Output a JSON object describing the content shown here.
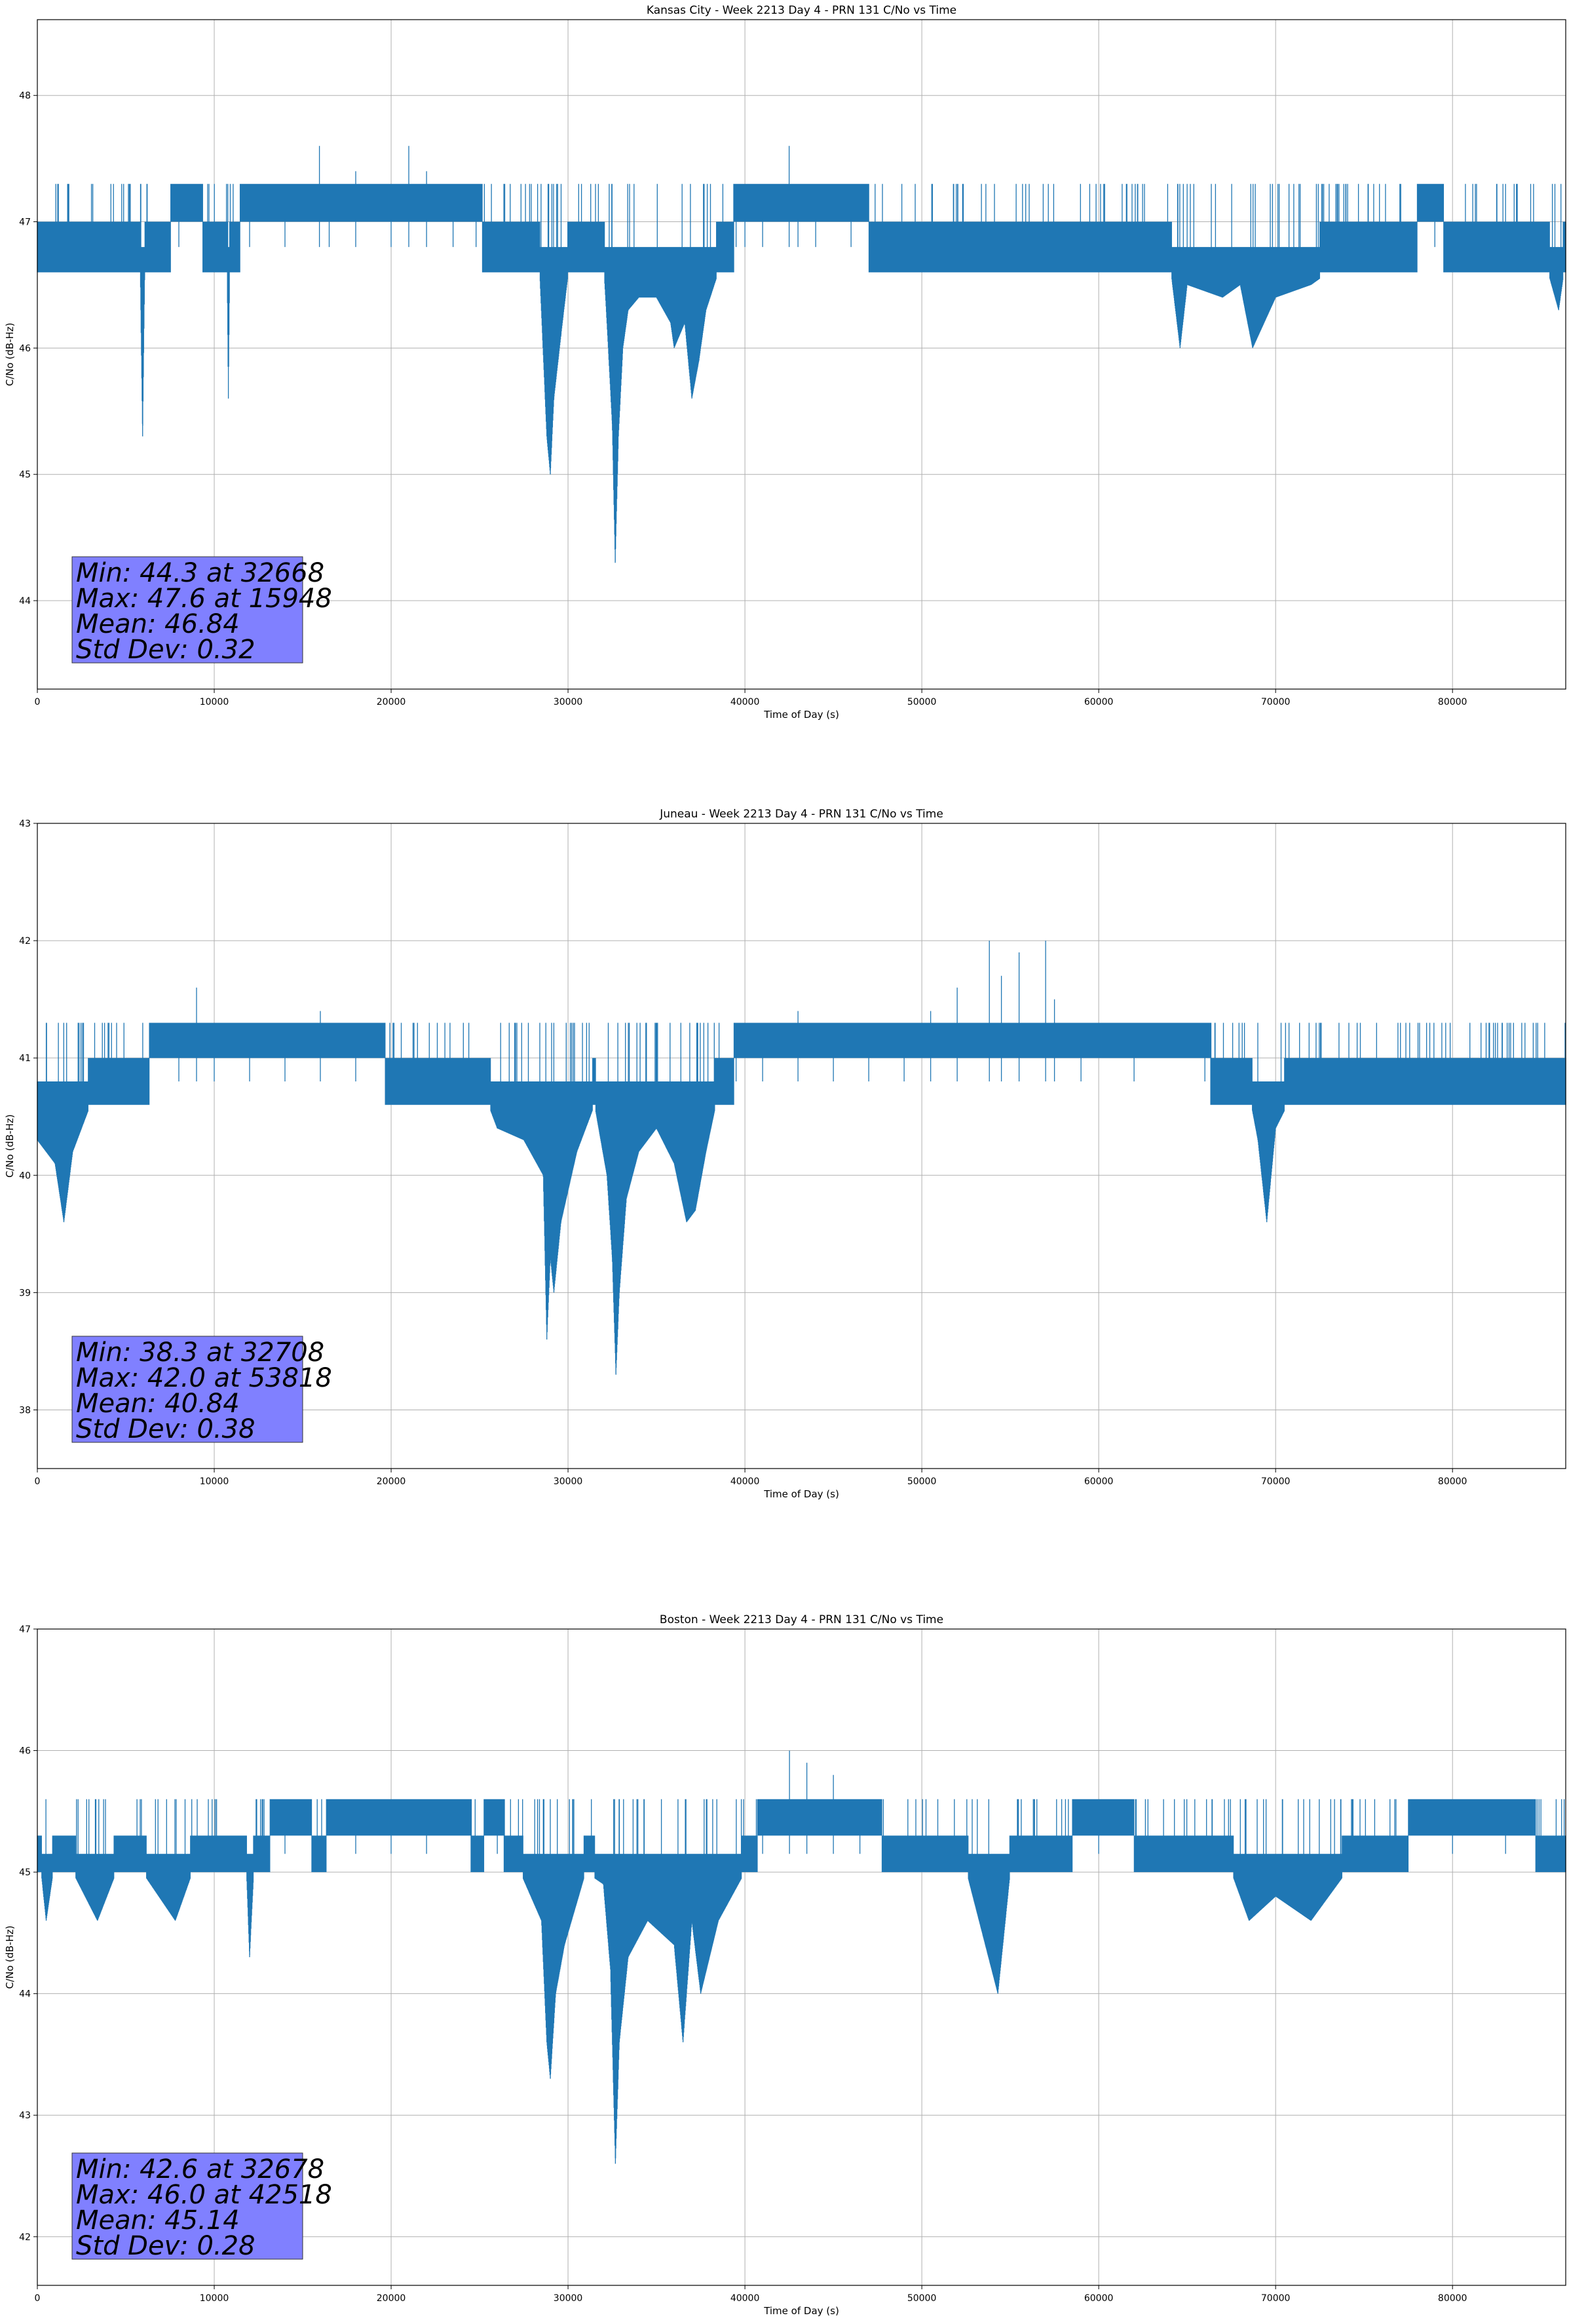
{
  "chart_data": [
    {
      "type": "line",
      "title": "Kansas City - Week 2213 Day 4 - PRN 131 C/No vs Time",
      "xlabel": "Time of Day (s)",
      "ylabel": "C/No (dB-Hz)",
      "xlim": [
        0,
        86400
      ],
      "ylim": [
        43.3,
        48.6
      ],
      "xticks": [
        0,
        10000,
        20000,
        30000,
        40000,
        50000,
        60000,
        70000,
        80000
      ],
      "yticks": [
        44,
        45,
        46,
        47,
        48
      ],
      "grid": true,
      "series_color": "#1f77b4",
      "base_low": 46.6,
      "base_high": 47.0,
      "upper_level": 47.3,
      "stats_lines": [
        "Min: 44.3 at 32668",
        "Max: 47.6 at 15948",
        "Mean: 46.84",
        "Std Dev: 0.32"
      ],
      "series": [
        {
          "x": [
            0,
            2000,
            4000,
            5800,
            5950,
            6100,
            8000,
            10700,
            10800,
            10900,
            12000,
            14000,
            15948,
            16500,
            18000,
            20000,
            21000,
            22000,
            23500,
            24800,
            25500,
            26500,
            27500,
            28400,
            28800,
            29000,
            29200,
            29600,
            30100,
            31000,
            32000,
            32200,
            32500,
            32668,
            32850,
            33100,
            33400,
            34000,
            35000,
            35800,
            36000,
            36600,
            37000,
            37400,
            37800,
            38500,
            39000,
            39500,
            40000,
            41000,
            42500,
            43000,
            44000,
            46000,
            48000,
            50000,
            52000,
            55000,
            58000,
            60500,
            64000,
            64600,
            65000,
            67000,
            68000,
            68700,
            70000,
            72000,
            73000,
            74000,
            77000,
            79000,
            81000,
            84000,
            85000,
            86000,
            86400
          ],
          "y": [
            47.0,
            47.0,
            46.7,
            46.8,
            45.3,
            46.9,
            47.1,
            47.0,
            45.6,
            47.0,
            47.1,
            47.2,
            47.6,
            47.3,
            47.4,
            47.3,
            47.6,
            47.4,
            47.3,
            47.2,
            46.9,
            46.8,
            46.7,
            46.6,
            45.3,
            45.0,
            45.6,
            46.1,
            46.7,
            46.8,
            46.7,
            46.2,
            45.4,
            44.3,
            45.3,
            46.0,
            46.3,
            46.4,
            46.4,
            46.2,
            46.0,
            46.2,
            45.6,
            45.9,
            46.3,
            46.6,
            46.9,
            47.1,
            47.3,
            47.3,
            47.6,
            47.2,
            47.3,
            47.1,
            47.0,
            46.8,
            46.7,
            46.6,
            46.7,
            46.8,
            46.7,
            46.0,
            46.5,
            46.4,
            46.5,
            46.0,
            46.4,
            46.5,
            46.6,
            46.8,
            47.0,
            47.1,
            46.9,
            46.7,
            46.8,
            46.3,
            46.7
          ]
        }
      ]
    },
    {
      "type": "line",
      "title": "Juneau - Week 2213 Day 4 - PRN 131 C/No vs Time",
      "xlabel": "Time of Day (s)",
      "ylabel": "C/No (dB-Hz)",
      "xlim": [
        0,
        86400
      ],
      "ylim": [
        37.5,
        43.0
      ],
      "xticks": [
        0,
        10000,
        20000,
        30000,
        40000,
        50000,
        60000,
        70000,
        80000
      ],
      "yticks": [
        38,
        39,
        40,
        41,
        42,
        43
      ],
      "grid": true,
      "series_color": "#1f77b4",
      "base_low": 40.6,
      "base_high": 41.0,
      "upper_level": 41.3,
      "stats_lines": [
        "Min: 38.3 at 32708",
        "Max: 42.0 at 53818",
        "Mean: 40.84",
        "Std Dev: 0.38"
      ],
      "series": [
        {
          "x": [
            0,
            1000,
            1500,
            2000,
            3000,
            4500,
            6000,
            8000,
            9000,
            10000,
            12000,
            14000,
            16000,
            18000,
            20000,
            22000,
            24000,
            25000,
            26000,
            27500,
            28600,
            28800,
            29000,
            29200,
            29600,
            30500,
            31500,
            32200,
            32500,
            32708,
            32900,
            33300,
            34000,
            35000,
            36000,
            36700,
            37200,
            37800,
            38500,
            39500,
            41000,
            43000,
            45000,
            47000,
            49000,
            50500,
            52000,
            53818,
            54500,
            55500,
            57000,
            57500,
            59000,
            62000,
            66000,
            68500,
            69000,
            69500,
            70000,
            71000,
            74000,
            77000,
            80000,
            83000,
            86400
          ],
          "y": [
            40.3,
            40.1,
            39.6,
            40.2,
            40.6,
            40.8,
            41.0,
            41.3,
            41.6,
            41.2,
            41.3,
            41.1,
            41.4,
            41.3,
            41.0,
            40.9,
            40.6,
            40.8,
            40.4,
            40.3,
            40.0,
            38.6,
            39.3,
            39.0,
            39.6,
            40.2,
            40.6,
            40.0,
            39.3,
            38.3,
            39.0,
            39.8,
            40.2,
            40.4,
            40.1,
            39.6,
            39.7,
            40.2,
            40.7,
            41.1,
            41.3,
            41.4,
            41.2,
            41.3,
            41.2,
            41.4,
            41.6,
            42.0,
            41.7,
            41.9,
            42.0,
            41.5,
            41.3,
            41.3,
            41.1,
            40.7,
            40.3,
            39.6,
            40.4,
            40.7,
            41.0,
            40.9,
            40.8,
            40.7,
            40.6
          ]
        }
      ]
    },
    {
      "type": "line",
      "title": "Boston - Week 2213 Day 4 - PRN 131 C/No vs Time",
      "xlabel": "Time of Day (s)",
      "ylabel": "C/No (dB-Hz)",
      "xlim": [
        0,
        86400
      ],
      "ylim": [
        41.6,
        47.0
      ],
      "xticks": [
        0,
        10000,
        20000,
        30000,
        40000,
        50000,
        60000,
        70000,
        80000
      ],
      "yticks": [
        42,
        43,
        44,
        45,
        46,
        47
      ],
      "grid": true,
      "series_color": "#1f77b4",
      "base_low": 45.0,
      "base_high": 45.3,
      "upper_level": 45.6,
      "stats_lines": [
        "Min: 42.6 at 32678",
        "Max: 46.0 at 42518",
        "Mean: 45.14",
        "Std Dev: 0.28"
      ],
      "series": [
        {
          "x": [
            0,
            500,
            1000,
            2000,
            3400,
            5000,
            7800,
            9500,
            11800,
            12000,
            12300,
            14000,
            16000,
            18000,
            20000,
            22000,
            25000,
            26000,
            27000,
            28500,
            28800,
            29000,
            29300,
            29800,
            31000,
            32000,
            32400,
            32678,
            32900,
            33400,
            34500,
            36000,
            36500,
            37000,
            37500,
            38500,
            40000,
            41000,
            42518,
            43500,
            45000,
            46500,
            48000,
            50000,
            52000,
            54300,
            55000,
            57000,
            60000,
            64000,
            67000,
            68500,
            70000,
            72000,
            74000,
            77000,
            80000,
            83000,
            86400
          ],
          "y": [
            45.3,
            44.6,
            45.1,
            45.0,
            44.6,
            45.2,
            44.6,
            45.3,
            45.1,
            44.3,
            45.2,
            45.5,
            45.3,
            45.6,
            45.4,
            45.6,
            45.3,
            45.5,
            45.1,
            44.6,
            43.6,
            43.3,
            44.0,
            44.4,
            45.0,
            44.9,
            44.2,
            42.6,
            43.6,
            44.3,
            44.6,
            44.4,
            43.6,
            44.6,
            44.0,
            44.6,
            45.0,
            45.5,
            46.0,
            45.9,
            45.8,
            45.6,
            45.3,
            45.1,
            45.3,
            44.0,
            45.0,
            45.3,
            45.4,
            45.3,
            45.2,
            44.6,
            44.8,
            44.6,
            45.0,
            45.3,
            45.6,
            45.4,
            45.3
          ]
        }
      ]
    }
  ]
}
